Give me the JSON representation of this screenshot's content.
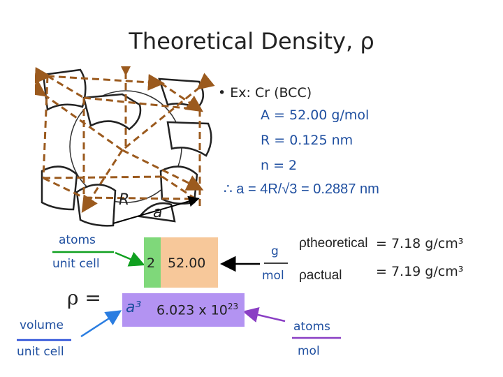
{
  "title": "Theoretical Density, ρ",
  "example": {
    "bullet": "•",
    "heading": "Ex: Cr (BCC)",
    "A": "A = 52.00 g/mol",
    "R": "R = 0.125 nm",
    "n": "n = 2",
    "lattice": "∴ a = 4R/√3 = 0.2887 nm"
  },
  "diagram": {
    "label_R": "R",
    "label_a": "a"
  },
  "formula": {
    "atoms": "atoms",
    "unit_cell_top": "unit cell",
    "rho_equals": "ρ =",
    "volume": "volume",
    "unit_cell_bottom": "unit cell",
    "n_value": "2",
    "A_value": "52.00",
    "a_cubed": "a³",
    "avogadro": "6.023 x 10",
    "avogadro_exp": "23",
    "atoms_right": "atoms",
    "mol_right": "mol",
    "g": "g",
    "mol": "mol"
  },
  "results": {
    "rho_theoretical": "ρtheoretical",
    "rho_actual": "ρactual",
    "theoretical_value": "= 7.18 g/cm³",
    "actual_value": "= 7.19 g/cm³"
  },
  "colors": {
    "green": "#7fd87a",
    "orange": "#f7c89a",
    "purple": "#b393f2",
    "blue_text": "#1f4fa0",
    "arrow_blue": "#2a7de1",
    "arrow_purple": "#8a3fc4",
    "line_green": "#10a020",
    "line_blue": "#2a4fd8",
    "line_purple": "#8a3fc4",
    "dash_brown": "#9b5a1e"
  }
}
